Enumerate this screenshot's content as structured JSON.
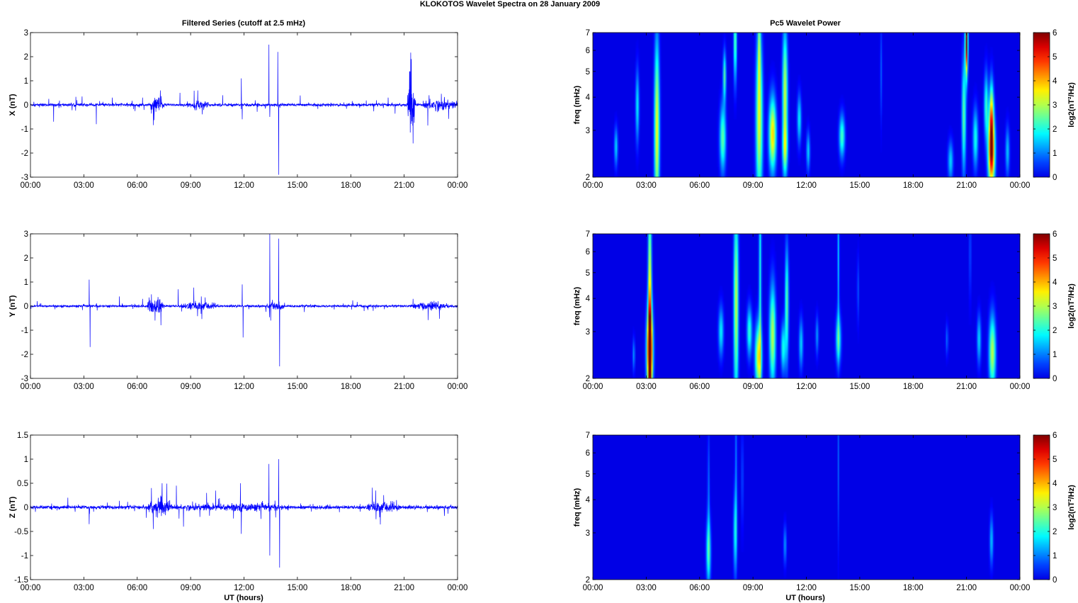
{
  "figure": {
    "title": "KLOKOTOS Wavelet Spectra on 28 January   2009",
    "left_title": "Filtered Series (cutoff at 2.5 mHz)",
    "right_title": "Pc5 Wavelet Power",
    "xlabel": "UT (hours)"
  },
  "chart_data": [
    {
      "type": "line",
      "component": "X",
      "ylabel": "X (nT)",
      "xlim": [
        0,
        24
      ],
      "ylim": [
        -3,
        3
      ],
      "yticks": [
        "3",
        "2",
        "1",
        "0",
        "-1",
        "-2",
        "-3"
      ],
      "xticks": [
        "00:00",
        "03:00",
        "06:00",
        "09:00",
        "12:00",
        "15:00",
        "18:00",
        "21:00",
        "00:00"
      ],
      "color": "#0000ff",
      "base_noise": 0.05,
      "envelopes": [
        [
          6.8,
          7.5,
          0.3
        ],
        [
          9.0,
          10.0,
          0.15
        ],
        [
          21.2,
          21.6,
          1.0
        ],
        [
          22.0,
          24.0,
          0.2
        ]
      ],
      "spikes": [
        [
          1.3,
          -0.7
        ],
        [
          2.9,
          0.35
        ],
        [
          3.7,
          -0.8
        ],
        [
          4.6,
          0.3
        ],
        [
          6.3,
          0.3
        ],
        [
          7.3,
          0.6
        ],
        [
          8.4,
          0.5
        ],
        [
          9.4,
          0.6
        ],
        [
          10.8,
          0.4
        ],
        [
          11.85,
          1.1
        ],
        [
          11.9,
          -0.6
        ],
        [
          13.4,
          2.5
        ],
        [
          13.45,
          -0.5
        ],
        [
          13.9,
          2.2
        ],
        [
          13.95,
          -2.9
        ],
        [
          20.1,
          0.3
        ],
        [
          21.4,
          1.9
        ],
        [
          21.5,
          -1.6
        ],
        [
          22.4,
          0.4
        ]
      ]
    },
    {
      "type": "line",
      "component": "Y",
      "ylabel": "Y (nT)",
      "xlim": [
        0,
        24
      ],
      "ylim": [
        -3,
        3
      ],
      "yticks": [
        "3",
        "2",
        "1",
        "0",
        "-1",
        "-2",
        "-3"
      ],
      "xticks": [
        "00:00",
        "03:00",
        "06:00",
        "09:00",
        "12:00",
        "15:00",
        "18:00",
        "21:00",
        "00:00"
      ],
      "color": "#0000ff",
      "base_noise": 0.04,
      "envelopes": [
        [
          6.6,
          7.5,
          0.3
        ],
        [
          8.5,
          10.5,
          0.15
        ],
        [
          13.3,
          14.3,
          0.15
        ],
        [
          21.5,
          23.5,
          0.15
        ]
      ],
      "spikes": [
        [
          3.3,
          1.1
        ],
        [
          3.35,
          -1.7
        ],
        [
          5.0,
          0.4
        ],
        [
          6.3,
          0.3
        ],
        [
          7.0,
          -0.6
        ],
        [
          8.3,
          0.7
        ],
        [
          9.6,
          0.4
        ],
        [
          11.9,
          0.9
        ],
        [
          11.95,
          -1.3
        ],
        [
          13.45,
          3.0
        ],
        [
          13.5,
          -0.6
        ],
        [
          13.95,
          2.8
        ],
        [
          14.0,
          -2.5
        ],
        [
          21.5,
          0.3
        ],
        [
          22.9,
          0.2
        ]
      ]
    },
    {
      "type": "line",
      "component": "Z",
      "ylabel": "Z (nT)",
      "xlim": [
        0,
        24
      ],
      "ylim": [
        -1.5,
        1.5
      ],
      "yticks": [
        "1.5",
        "1",
        "0.5",
        "0",
        "-0.5",
        "-1",
        "-1.5"
      ],
      "xticks": [
        "00:00",
        "03:00",
        "06:00",
        "09:00",
        "12:00",
        "15:00",
        "18:00",
        "21:00",
        "00:00"
      ],
      "color": "#0000ff",
      "base_noise": 0.03,
      "envelopes": [
        [
          6.6,
          8.0,
          0.15
        ],
        [
          8.0,
          14.5,
          0.07
        ],
        [
          18.9,
          20.8,
          0.1
        ]
      ],
      "spikes": [
        [
          2.1,
          0.2
        ],
        [
          3.3,
          -0.35
        ],
        [
          6.8,
          0.4
        ],
        [
          6.9,
          -0.45
        ],
        [
          7.4,
          0.5
        ],
        [
          8.2,
          0.45
        ],
        [
          8.6,
          -0.4
        ],
        [
          9.9,
          0.3
        ],
        [
          11.8,
          0.5
        ],
        [
          11.85,
          -0.55
        ],
        [
          13.4,
          0.9
        ],
        [
          13.45,
          -1.0
        ],
        [
          13.95,
          1.0
        ],
        [
          14.0,
          -1.25
        ],
        [
          19.4,
          0.35
        ]
      ]
    },
    {
      "type": "heatmap",
      "component": "X",
      "ylabel": "freq (mHz)",
      "yscale": "log",
      "ylim": [
        2,
        7
      ],
      "xlim": [
        0,
        24
      ],
      "yticks": [
        "7",
        "6",
        "5",
        "4",
        "3",
        "2"
      ],
      "xticks": [
        "00:00",
        "03:00",
        "06:00",
        "09:00",
        "12:00",
        "15:00",
        "18:00",
        "21:00",
        "00:00"
      ],
      "clim": [
        0,
        6
      ],
      "colorbar_label": "log2(nT²/Hz)",
      "colorbar_ticks": [
        "6",
        "5",
        "4",
        "3",
        "2",
        "1",
        "0"
      ],
      "blobs": [
        [
          1.3,
          2.6,
          0.07,
          0.12,
          1.6
        ],
        [
          2.5,
          3.7,
          0.07,
          0.22,
          1.8
        ],
        [
          3.6,
          3.0,
          0.1,
          0.55,
          3.5
        ],
        [
          7.3,
          2.8,
          0.12,
          0.2,
          2.5
        ],
        [
          7.4,
          4.8,
          0.06,
          0.15,
          2.4
        ],
        [
          8.0,
          6.5,
          0.06,
          0.25,
          2.6
        ],
        [
          9.35,
          3.3,
          0.13,
          0.5,
          3.4
        ],
        [
          9.35,
          6.3,
          0.05,
          0.25,
          1.8
        ],
        [
          10.1,
          2.9,
          0.14,
          0.22,
          3.8
        ],
        [
          10.8,
          4.1,
          0.1,
          0.4,
          3.2
        ],
        [
          10.8,
          2.55,
          0.1,
          0.15,
          2.0
        ],
        [
          11.6,
          3.3,
          0.08,
          0.15,
          1.8
        ],
        [
          12.1,
          2.5,
          0.07,
          0.12,
          1.6
        ],
        [
          14.0,
          2.85,
          0.11,
          0.13,
          2.3
        ],
        [
          16.2,
          5.0,
          0.04,
          0.3,
          0.8
        ],
        [
          20.1,
          2.3,
          0.1,
          0.12,
          1.6
        ],
        [
          20.85,
          3.4,
          0.08,
          0.35,
          2.5
        ],
        [
          21.0,
          6.4,
          0.05,
          0.2,
          6.0
        ],
        [
          21.5,
          2.8,
          0.1,
          0.18,
          2.0
        ],
        [
          22.1,
          3.7,
          0.08,
          0.2,
          2.2
        ],
        [
          22.4,
          2.5,
          0.13,
          0.22,
          5.8
        ],
        [
          22.4,
          3.5,
          0.08,
          0.2,
          3.0
        ],
        [
          23.3,
          2.5,
          0.08,
          0.15,
          1.5
        ]
      ]
    },
    {
      "type": "heatmap",
      "component": "Y",
      "ylabel": "freq (mHz)",
      "yscale": "log",
      "ylim": [
        2,
        7
      ],
      "xlim": [
        0,
        24
      ],
      "yticks": [
        "7",
        "6",
        "5",
        "4",
        "3",
        "2"
      ],
      "xticks": [
        "00:00",
        "03:00",
        "06:00",
        "09:00",
        "12:00",
        "15:00",
        "18:00",
        "21:00",
        "00:00"
      ],
      "clim": [
        0,
        6
      ],
      "colorbar_label": "log2(nT²/Hz)",
      "colorbar_ticks": [
        "6",
        "5",
        "4",
        "3",
        "2",
        "1",
        "0"
      ],
      "blobs": [
        [
          2.3,
          2.45,
          0.05,
          0.1,
          1.2
        ],
        [
          3.2,
          2.55,
          0.12,
          0.25,
          5.5
        ],
        [
          3.2,
          3.5,
          0.07,
          0.7,
          4.0
        ],
        [
          7.2,
          3.0,
          0.1,
          0.15,
          1.8
        ],
        [
          8.05,
          3.8,
          0.09,
          0.6,
          3.2
        ],
        [
          8.8,
          3.0,
          0.1,
          0.15,
          2.2
        ],
        [
          9.3,
          2.4,
          0.13,
          0.2,
          3.4
        ],
        [
          9.4,
          5.0,
          0.05,
          0.8,
          2.0
        ],
        [
          10.1,
          2.9,
          0.12,
          0.3,
          3.1
        ],
        [
          10.9,
          3.8,
          0.07,
          0.35,
          2.5
        ],
        [
          10.7,
          2.6,
          0.09,
          0.15,
          2.0
        ],
        [
          11.7,
          2.7,
          0.08,
          0.15,
          1.6
        ],
        [
          12.6,
          2.9,
          0.06,
          0.12,
          1.2
        ],
        [
          13.8,
          2.8,
          0.1,
          0.15,
          2.2
        ],
        [
          13.8,
          5.8,
          0.04,
          0.5,
          1.5
        ],
        [
          14.9,
          4.3,
          0.04,
          0.2,
          0.8
        ],
        [
          19.9,
          2.8,
          0.05,
          0.1,
          0.9
        ],
        [
          21.2,
          6.0,
          0.04,
          0.3,
          0.8
        ],
        [
          21.7,
          2.8,
          0.08,
          0.15,
          1.6
        ],
        [
          22.45,
          2.5,
          0.13,
          0.22,
          3.1
        ]
      ]
    },
    {
      "type": "heatmap",
      "component": "Z",
      "ylabel": "freq (mHz)",
      "yscale": "log",
      "ylim": [
        2,
        7
      ],
      "xlim": [
        0,
        24
      ],
      "yticks": [
        "7",
        "6",
        "5",
        "4",
        "3",
        "2"
      ],
      "xticks": [
        "00:00",
        "03:00",
        "06:00",
        "09:00",
        "12:00",
        "15:00",
        "18:00",
        "21:00",
        "00:00"
      ],
      "clim": [
        0,
        6
      ],
      "colorbar_label": "log2(nT²/Hz)",
      "colorbar_ticks": [
        "6",
        "5",
        "4",
        "3",
        "2",
        "1",
        "0"
      ],
      "blobs": [
        [
          6.5,
          2.55,
          0.09,
          0.2,
          2.2
        ],
        [
          6.5,
          4.3,
          0.04,
          0.4,
          1.0
        ],
        [
          8.0,
          3.0,
          0.07,
          0.25,
          1.8
        ],
        [
          8.05,
          5.5,
          0.04,
          0.5,
          1.0
        ],
        [
          8.4,
          4.8,
          0.04,
          0.3,
          0.8
        ],
        [
          10.8,
          2.7,
          0.06,
          0.12,
          1.2
        ],
        [
          13.8,
          5.5,
          0.03,
          0.5,
          0.8
        ],
        [
          22.4,
          2.8,
          0.07,
          0.15,
          1.5
        ]
      ]
    }
  ]
}
